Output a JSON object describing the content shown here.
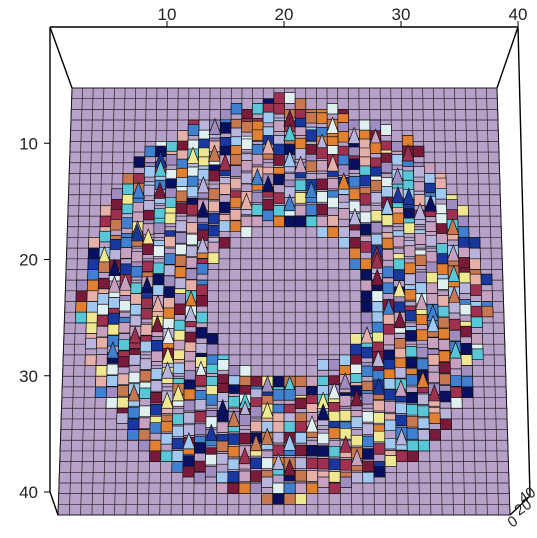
{
  "chart_data": {
    "type": "surface3d",
    "title": "",
    "xlabel": "",
    "ylabel": "",
    "zlabel": "",
    "grid_size": 40,
    "xlim": [
      0,
      40
    ],
    "ylim": [
      0,
      40
    ],
    "x_ticks": [
      "10",
      "20",
      "30",
      "40"
    ],
    "y_ticks": [
      "10",
      "20",
      "30",
      "40"
    ],
    "z_ticks": [
      "0",
      "20",
      "40"
    ],
    "surface": {
      "shape": "ring",
      "center": [
        20,
        20
      ],
      "ring_radius": 13,
      "ring_width": 4.5,
      "base_level": 0
    },
    "colors": {
      "base": "#b7a1c8",
      "palette": [
        "#c8a0c0",
        "#9f8cc0",
        "#b8b4dc",
        "#e6b0a8",
        "#c87850",
        "#e08030",
        "#a03050",
        "#7a1a3a",
        "#0a1060",
        "#1838a0",
        "#4080d0",
        "#a0c8f0",
        "#f0e890",
        "#e0f0f0",
        "#58c8d8"
      ],
      "grid_line": "#222222"
    }
  }
}
